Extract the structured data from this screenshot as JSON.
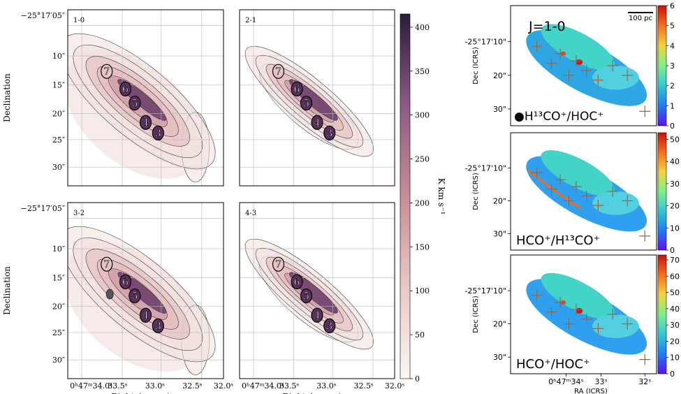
{
  "left_panels": {
    "ylabel": "Declination",
    "xlabel": "Right Ascension",
    "yticks": [
      "−25°17′05″",
      "10″",
      "15″",
      "20″",
      "25″",
      "30″"
    ],
    "xticks": [
      "0ʰ47ᵐ34.0ˢ",
      "33.5ˢ",
      "33.0ˢ",
      "32.5ˢ",
      "32.0ˢ"
    ],
    "source_labels": [
      "7",
      "6",
      "5",
      "4",
      "3"
    ],
    "panels": [
      {
        "label": "1-0"
      },
      {
        "label": "2-1"
      },
      {
        "label": "3-2"
      },
      {
        "label": "4-3"
      }
    ],
    "colorbar": {
      "label": "K km s⁻¹",
      "ticks": [
        "0",
        "50",
        "100",
        "150",
        "200",
        "250",
        "300",
        "350",
        "400"
      ],
      "min": 0,
      "max": 415
    }
  },
  "right_panels": {
    "ylabel": "Dec (ICRS)",
    "xlabel": "RA (ICRS)",
    "yticks": [
      "-25°17'10\"",
      "20\"",
      "30\""
    ],
    "xticks": [
      "0ʰ47ᵐ34ˢ",
      "33ˢ",
      "32ˢ"
    ],
    "scalebar": "100 pc",
    "transition": "J=1-0",
    "panels": [
      {
        "ratio": "●H¹³CO⁺/HOC⁺",
        "cbar_ticks": [
          "0",
          "1",
          "2",
          "3",
          "4",
          "5",
          "6"
        ],
        "cbar_max": 6
      },
      {
        "ratio": "HCO⁺/H¹³CO⁺",
        "cbar_ticks": [
          "0",
          "10",
          "20",
          "30",
          "40",
          "50"
        ],
        "cbar_max": 53
      },
      {
        "ratio": "HCO⁺/HOC⁺",
        "cbar_ticks": [
          "0",
          "10",
          "20",
          "30",
          "40",
          "50",
          "60",
          "70"
        ],
        "cbar_max": 73
      }
    ]
  },
  "colors": {
    "left_cmap": [
      "#fbf7f5",
      "#e8c9c5",
      "#c98d97",
      "#8d5a84",
      "#2b1b3d"
    ],
    "right_cmap": [
      "#5b10f4",
      "#1f7ef5",
      "#34c9d3",
      "#7ef28a",
      "#f3d33a",
      "#f56b1c",
      "#cc0f0f"
    ],
    "contour": "#3a3a3a",
    "cross": "#8a6a50"
  },
  "chart_data": [
    {
      "type": "heatmap",
      "title": "",
      "panels": [
        "1-0",
        "2-1",
        "3-2",
        "4-3"
      ],
      "colorbar_label": "K km s⁻¹",
      "colorbar_range": [
        0,
        415
      ],
      "sources": [
        "7",
        "6",
        "5",
        "4",
        "3"
      ]
    },
    {
      "type": "heatmap",
      "title": "J=1-0",
      "panels": [
        "H¹³CO⁺/HOC⁺",
        "HCO⁺/H¹³CO⁺",
        "HCO⁺/HOC⁺"
      ],
      "colorbar_ranges": [
        [
          0,
          6
        ],
        [
          0,
          53
        ],
        [
          0,
          73
        ]
      ]
    }
  ]
}
